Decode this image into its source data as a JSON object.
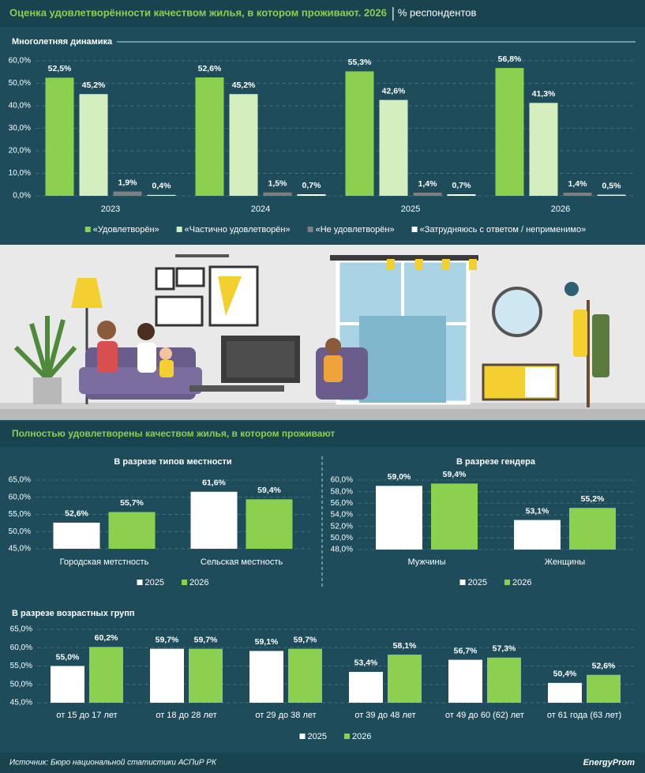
{
  "header": {
    "title": "Оценка удовлетворённости качеством жилья, в котором проживают. 2026",
    "unit": "% респондентов"
  },
  "section_title": "Полностью удовлетворены качеством жилья, в котором проживают",
  "footer": {
    "source": "Источник: Бюро национальной статистики АСПиР РК",
    "brand": "EnergyProm"
  },
  "chart_data": [
    {
      "type": "bar",
      "title": "Многолетняя динамика",
      "categories": [
        "2023",
        "2024",
        "2025",
        "2026"
      ],
      "series": [
        {
          "name": "«Удовлетворён»",
          "color": "#8dcf4f",
          "values": [
            52.5,
            52.6,
            55.3,
            56.8
          ],
          "value_labels": [
            "52,5%",
            "52,6%",
            "55,3%",
            "56,8%"
          ]
        },
        {
          "name": "«Частично удовлетворён»",
          "color": "#d5eebd",
          "values": [
            45.2,
            45.2,
            42.6,
            41.3
          ],
          "value_labels": [
            "45,2%",
            "45,2%",
            "42,6%",
            "41,3%"
          ]
        },
        {
          "name": "«Не удовлетворён»",
          "color": "#7f7f7f",
          "values": [
            1.9,
            1.5,
            1.4,
            1.4
          ],
          "value_labels": [
            "1,9%",
            "1,5%",
            "1,4%",
            "1,4%"
          ]
        },
        {
          "name": "«Затрудняюсь с ответом / неприменимо»",
          "color": "#ffffff",
          "values": [
            0.4,
            0.7,
            0.7,
            0.5
          ],
          "value_labels": [
            "0,4%",
            "0,7%",
            "0,7%",
            "0,5%"
          ]
        }
      ],
      "ylim": [
        0,
        60
      ],
      "yticks": [
        {
          "value": 0,
          "label": "0,0%"
        },
        {
          "value": 10,
          "label": "10,0%"
        },
        {
          "value": 20,
          "label": "20,0%"
        },
        {
          "value": 30,
          "label": "30,0%"
        },
        {
          "value": 40,
          "label": "40,0%"
        },
        {
          "value": 50,
          "label": "50,0%"
        },
        {
          "value": 60,
          "label": "60,0%"
        }
      ],
      "grid": true
    },
    {
      "type": "bar",
      "title": "В разрезе типов местности",
      "categories": [
        "Городская метстность",
        "Сельская местность"
      ],
      "series": [
        {
          "name": "2025",
          "color": "#ffffff",
          "values": [
            52.6,
            61.6
          ],
          "value_labels": [
            "52,6%",
            "61,6%"
          ]
        },
        {
          "name": "2026",
          "color": "#8dcf4f",
          "values": [
            55.7,
            59.4
          ],
          "value_labels": [
            "55,7%",
            "59,4%"
          ]
        }
      ],
      "ylim": [
        45,
        65
      ],
      "yticks": [
        {
          "value": 45,
          "label": "45,0%"
        },
        {
          "value": 50,
          "label": "50,0%"
        },
        {
          "value": 55,
          "label": "55,0%"
        },
        {
          "value": 60,
          "label": "60,0%"
        },
        {
          "value": 65,
          "label": "65,0%"
        }
      ],
      "grid": true
    },
    {
      "type": "bar",
      "title": "В разрезе гендера",
      "categories": [
        "Мужчины",
        "Женщины"
      ],
      "series": [
        {
          "name": "2025",
          "color": "#ffffff",
          "values": [
            59.0,
            53.1
          ],
          "value_labels": [
            "59,0%",
            "53,1%"
          ]
        },
        {
          "name": "2026",
          "color": "#8dcf4f",
          "values": [
            59.4,
            55.2
          ],
          "value_labels": [
            "59,4%",
            "55,2%"
          ]
        }
      ],
      "ylim": [
        48,
        60
      ],
      "yticks": [
        {
          "value": 48,
          "label": "48,0%"
        },
        {
          "value": 50,
          "label": "50,0%"
        },
        {
          "value": 52,
          "label": "52,0%"
        },
        {
          "value": 54,
          "label": "54,0%"
        },
        {
          "value": 56,
          "label": "56,0%"
        },
        {
          "value": 58,
          "label": "58,0%"
        },
        {
          "value": 60,
          "label": "60,0%"
        }
      ],
      "grid": true
    },
    {
      "type": "bar",
      "title": "В разрезе возрастных групп",
      "categories": [
        "от 15 до 17 лет",
        "от 18 до 28 лет",
        "от 29 до 38 лет",
        "от 39 до 48 лет",
        "от 49 до 60 (62) лет",
        "от 61 года (63 лет)"
      ],
      "series": [
        {
          "name": "2025",
          "color": "#ffffff",
          "values": [
            55.0,
            59.7,
            59.1,
            53.4,
            56.7,
            50.4
          ],
          "value_labels": [
            "55,0%",
            "59,7%",
            "59,1%",
            "53,4%",
            "56,7%",
            "50,4%"
          ]
        },
        {
          "name": "2026",
          "color": "#8dcf4f",
          "values": [
            60.2,
            59.7,
            59.7,
            58.1,
            57.3,
            52.6
          ],
          "value_labels": [
            "60,2%",
            "59,7%",
            "59,7%",
            "58,1%",
            "57,3%",
            "52,6%"
          ]
        }
      ],
      "ylim": [
        45,
        65
      ],
      "yticks": [
        {
          "value": 45,
          "label": "45,0%"
        },
        {
          "value": 50,
          "label": "50,0%"
        },
        {
          "value": 55,
          "label": "55,0%"
        },
        {
          "value": 60,
          "label": "60,0%"
        },
        {
          "value": 65,
          "label": "65,0%"
        }
      ],
      "grid": true
    }
  ]
}
